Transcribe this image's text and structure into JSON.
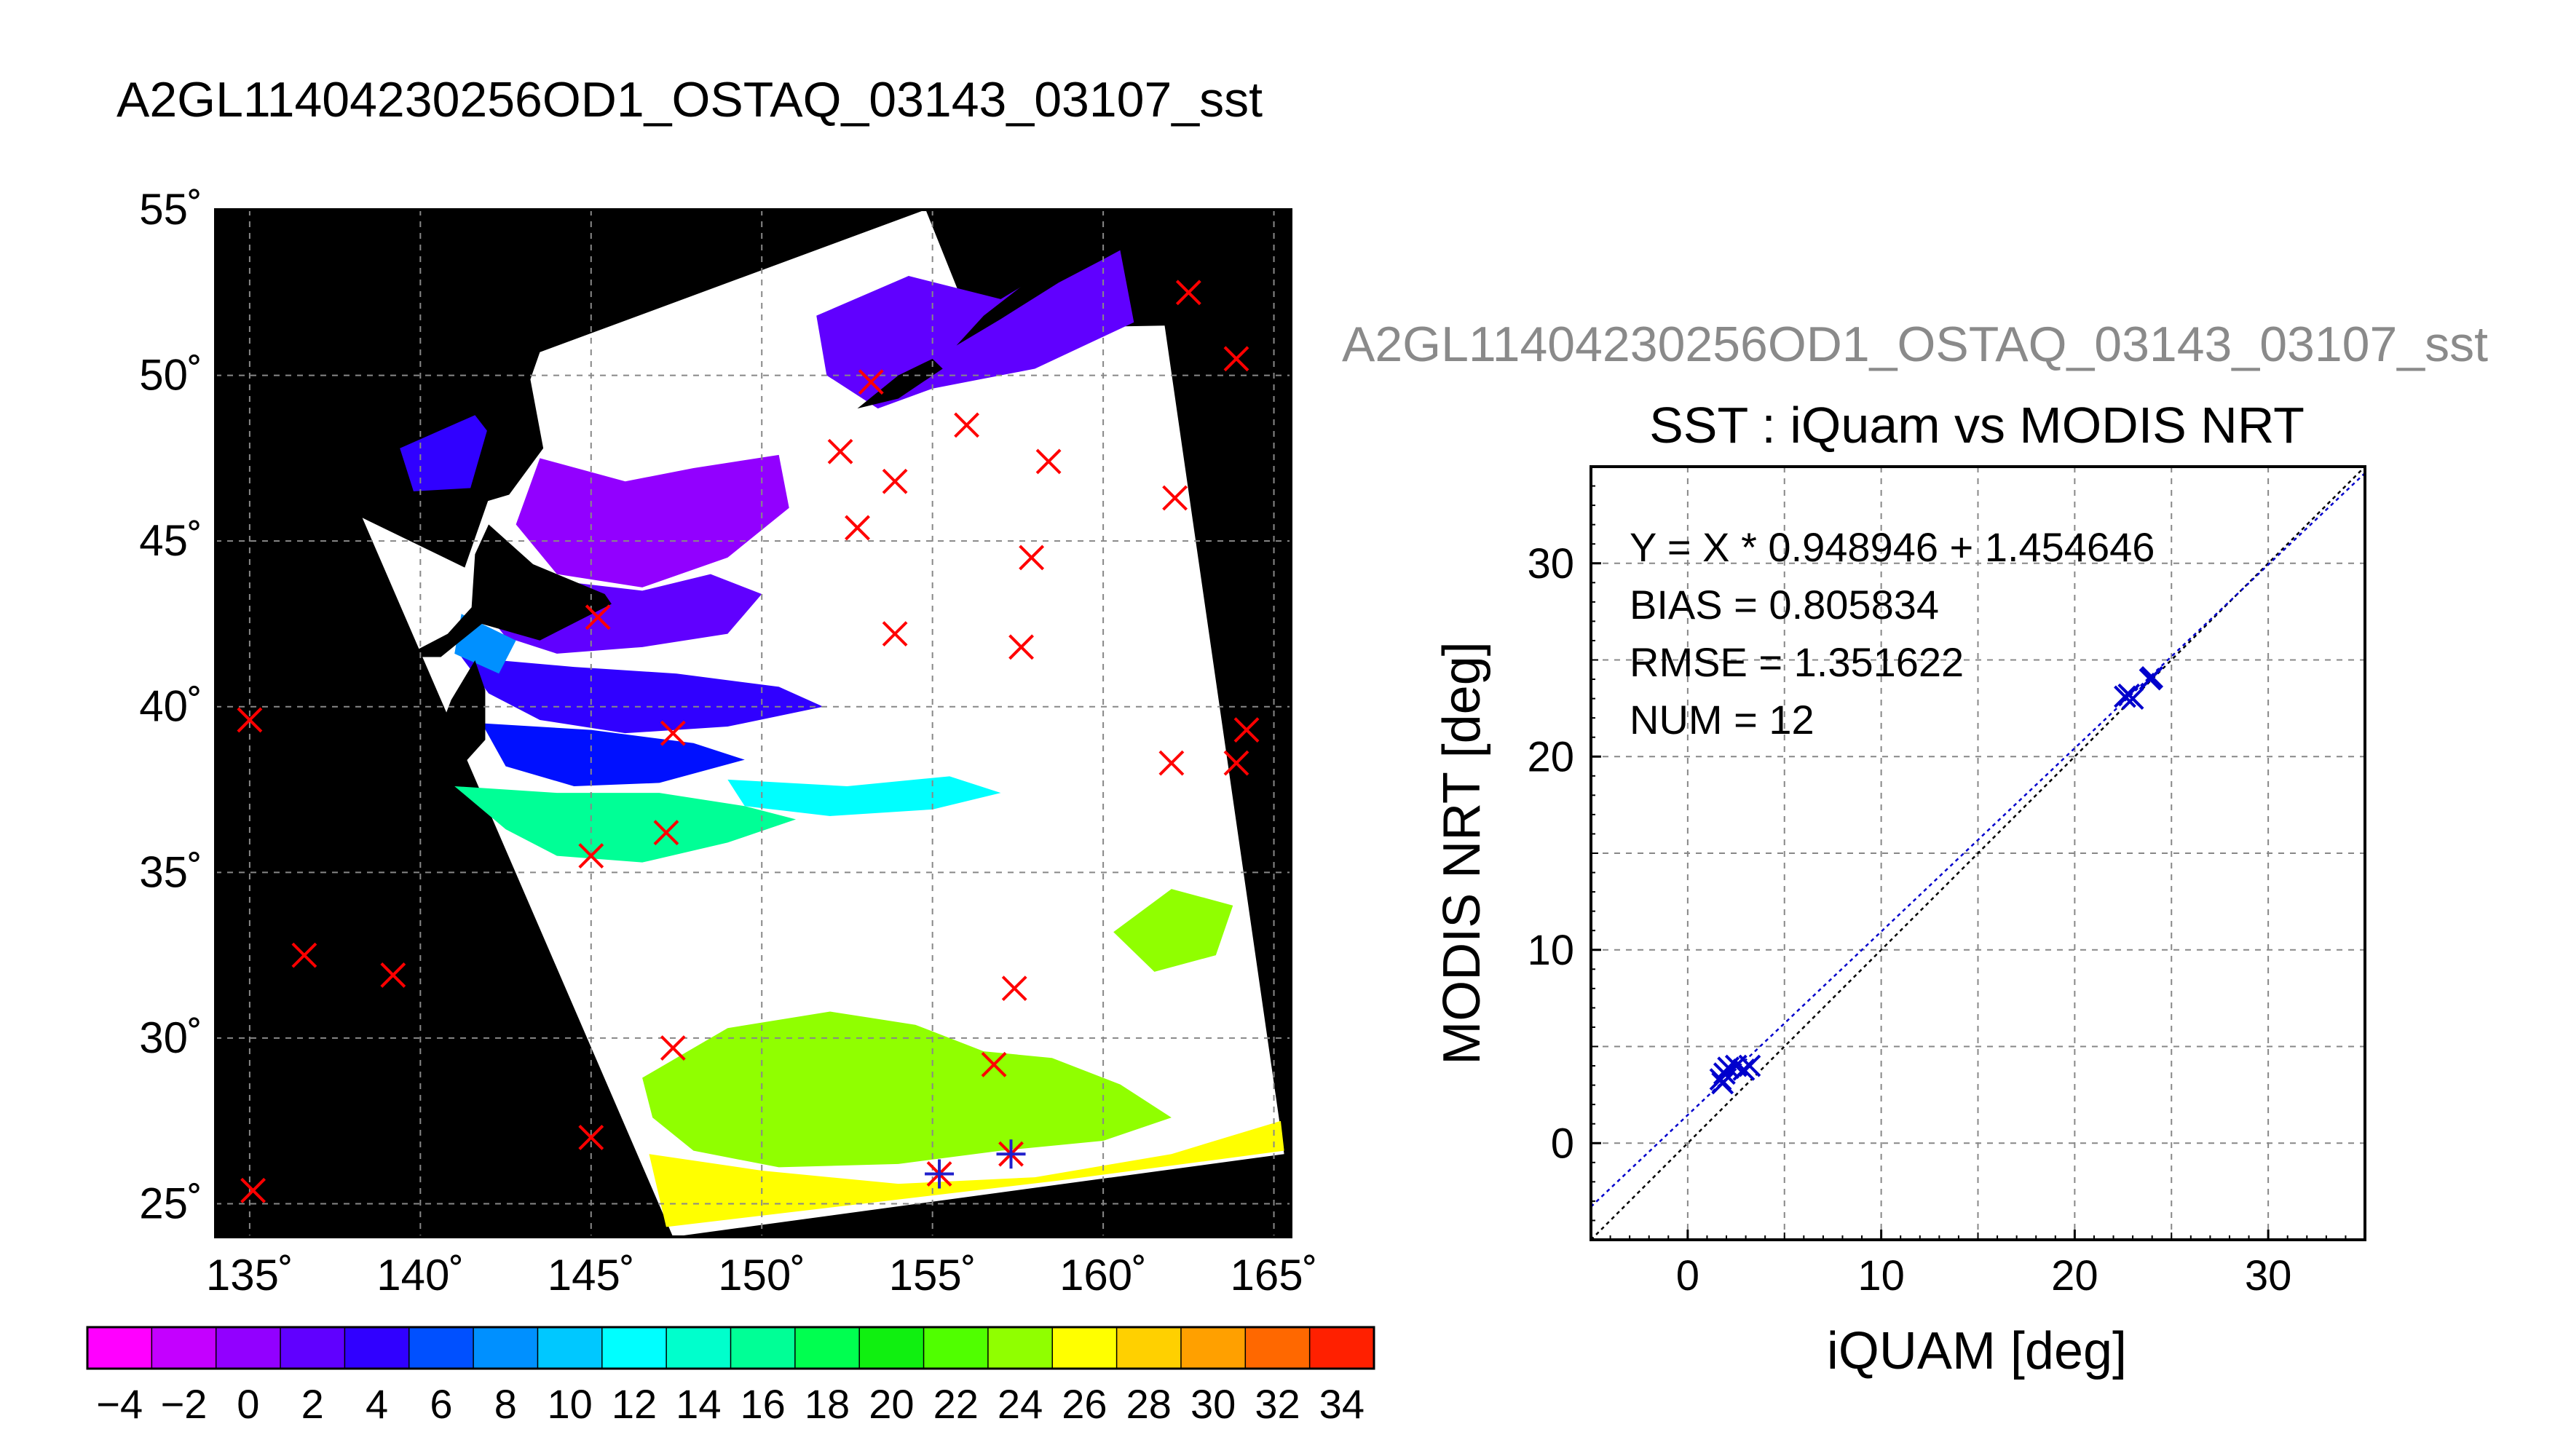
{
  "page_title": "A2GL11404230256OD1_OSTAQ_03143_03107_sst",
  "scatter_title_top": "A2GL11404230256OD1_OSTAQ_03143_03107_sst",
  "chart_data": [
    {
      "type": "heatmap",
      "title": "A2GL11404230256OD1_OSTAQ_03143_03107_sst",
      "x_ticks": [
        "135˚",
        "140˚",
        "145˚",
        "150˚",
        "155˚",
        "160˚",
        "165˚"
      ],
      "y_ticks": [
        "25˚",
        "30˚",
        "35˚",
        "40˚",
        "45˚",
        "50˚",
        "55˚"
      ],
      "xlim": [
        134,
        165.5
      ],
      "ylim": [
        24,
        55
      ],
      "grid": true,
      "colorbar": {
        "labels": [
          "−4",
          "−2",
          "0",
          "2",
          "4",
          "6",
          "8",
          "10",
          "12",
          "14",
          "16",
          "18",
          "20",
          "22",
          "24",
          "26",
          "28",
          "30",
          "32",
          "34"
        ],
        "range": [
          -5,
          35
        ],
        "step": 2,
        "colors": [
          "#ff00ff",
          "#c400ff",
          "#9200ff",
          "#6000ff",
          "#3000ff",
          "#0010ff",
          "#0050ff",
          "#0090ff",
          "#00c8ff",
          "#00ffff",
          "#00ffcc",
          "#00ff96",
          "#00ff50",
          "#10f010",
          "#50ff00",
          "#90ff00",
          "#c8ff00",
          "#ffff00",
          "#ffd000",
          "#ffa000",
          "#ff6800",
          "#ff2000"
        ]
      },
      "buoy_points_red": [
        [
          135,
          39.6
        ],
        [
          135.1,
          25.4
        ],
        [
          136.6,
          32.5
        ],
        [
          139.2,
          31.9
        ],
        [
          145,
          35.5
        ],
        [
          145,
          27
        ],
        [
          145.2,
          42.7
        ],
        [
          147.2,
          36.2
        ],
        [
          147.4,
          29.7
        ],
        [
          147.4,
          39.2
        ],
        [
          152.3,
          47.7
        ],
        [
          152.8,
          45.4
        ],
        [
          153.2,
          49.8
        ],
        [
          153.9,
          46.8
        ],
        [
          153.9,
          42.2
        ],
        [
          156,
          48.5
        ],
        [
          157.4,
          31.5
        ],
        [
          157.6,
          41.8
        ],
        [
          157.9,
          44.5
        ],
        [
          158.4,
          47.4
        ],
        [
          162.1,
          46.3
        ],
        [
          162,
          38.3
        ],
        [
          162.5,
          52.5
        ],
        [
          163.9,
          50.5
        ],
        [
          163.9,
          38.3
        ],
        [
          164.2,
          39.3
        ],
        [
          156.8,
          29.2
        ]
      ],
      "buoy_points_match": [
        [
          155.2,
          25.9
        ],
        [
          157.3,
          26.5
        ]
      ]
    },
    {
      "type": "scatter",
      "title": "SST : iQuam vs MODIS NRT",
      "xlabel": "iQUAM [deg]",
      "ylabel": "MODIS NRT [deg]",
      "xlim": [
        -5,
        35
      ],
      "ylim": [
        -5,
        35
      ],
      "x_ticks": [
        0,
        10,
        20,
        30
      ],
      "y_ticks": [
        0,
        10,
        20,
        30
      ],
      "grid": true,
      "annotations": [
        "Y = X * 0.948946 + 1.454646",
        "BIAS = 0.805834",
        "RMSE = 1.351622",
        "NUM = 12"
      ],
      "fit": {
        "slope": 0.948946,
        "intercept": 1.454646,
        "color": "#0000cc"
      },
      "identity_line_color": "#000000",
      "marker_color": "#0000cc",
      "points": [
        [
          1.7,
          3.3
        ],
        [
          1.8,
          3.1
        ],
        [
          2.1,
          3.9
        ],
        [
          2.5,
          4.0
        ],
        [
          2.9,
          3.8
        ],
        [
          3.2,
          4.0
        ],
        [
          22.6,
          23.1
        ],
        [
          22.8,
          23.2
        ],
        [
          23.0,
          23.0
        ],
        [
          23.9,
          24.0
        ],
        [
          24.0,
          24.1
        ],
        [
          1.9,
          3.6
        ]
      ]
    }
  ]
}
